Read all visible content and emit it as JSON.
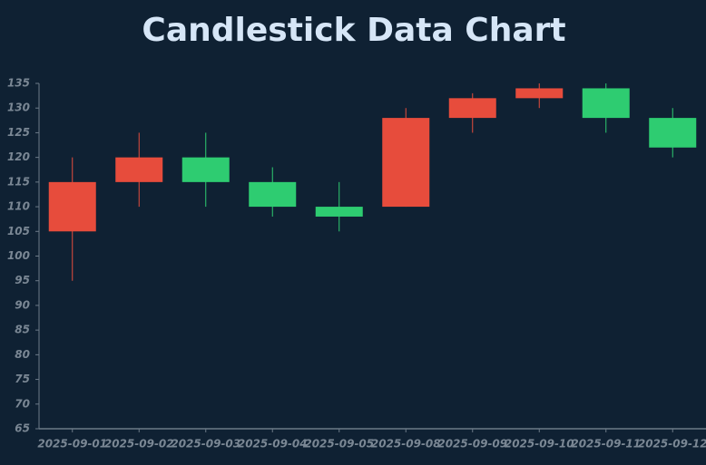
{
  "chart_data": {
    "type": "candlestick",
    "title": "Candlestick Data Chart",
    "categories": [
      "2025-09-01",
      "2025-09-02",
      "2025-09-03",
      "2025-09-04",
      "2025-09-05",
      "2025-09-08",
      "2025-09-09",
      "2025-09-10",
      "2025-09-11",
      "2025-09-12"
    ],
    "open": [
      105,
      115,
      120,
      115,
      110,
      110,
      128,
      132,
      134,
      128
    ],
    "high": [
      120,
      125,
      125,
      118,
      115,
      130,
      133,
      135,
      135,
      130
    ],
    "low": [
      95,
      110,
      110,
      108,
      105,
      110,
      125,
      130,
      125,
      120
    ],
    "close": [
      115,
      120,
      115,
      110,
      108,
      128,
      132,
      134,
      128,
      122
    ],
    "up_color": "#e74c3c",
    "down_color": "#2ecc71",
    "ylim": [
      65,
      135
    ],
    "yticks": [
      65,
      70,
      75,
      80,
      85,
      90,
      95,
      100,
      105,
      110,
      115,
      120,
      125,
      130,
      135
    ],
    "grid": false
  }
}
